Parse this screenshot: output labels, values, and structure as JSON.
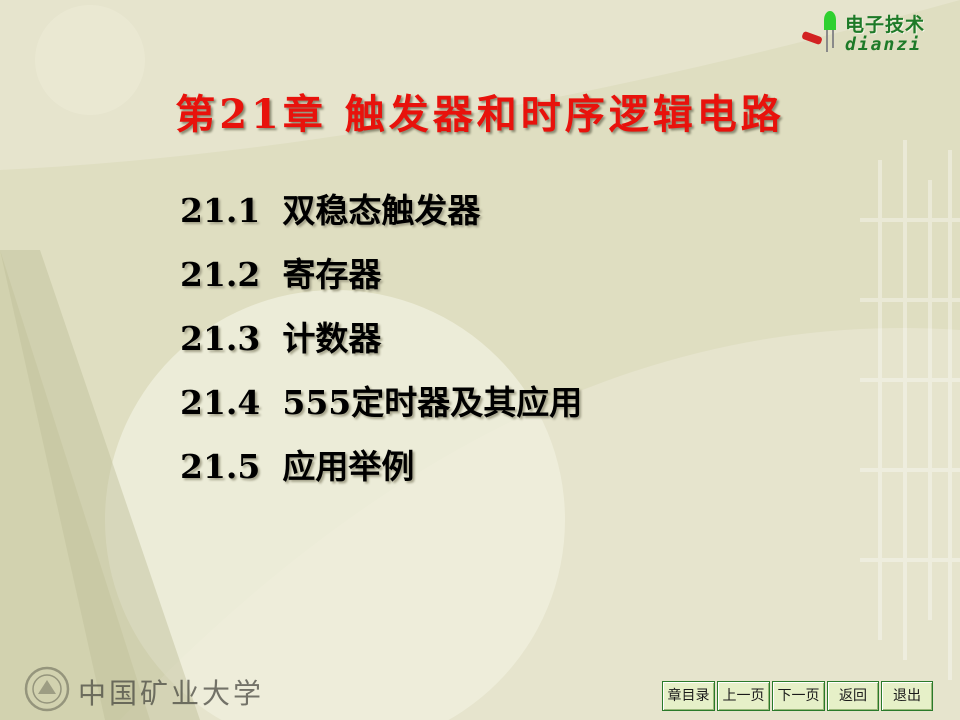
{
  "logo": {
    "cn": "电子技术",
    "en": "dianzi"
  },
  "title": "第21章  触发器和时序逻辑电路",
  "toc": [
    {
      "num": "21.1",
      "label": "双稳态触发器"
    },
    {
      "num": "21.2",
      "label": "寄存器"
    },
    {
      "num": "21.3",
      "label": "计数器"
    },
    {
      "num": "21.4",
      "label": "555定时器及其应用"
    },
    {
      "num": "21.5",
      "label": "应用举例"
    }
  ],
  "footer": {
    "university": "中国矿业大学"
  },
  "nav": {
    "chapter_toc": "章目录",
    "prev_page": "上一页",
    "next_page": "下一页",
    "back": "返回",
    "exit": "退出"
  },
  "colors": {
    "background": "#e6e4cd",
    "title": "#e8120c",
    "logo_green": "#1e7a28",
    "nav_border": "#2a7a2a"
  }
}
